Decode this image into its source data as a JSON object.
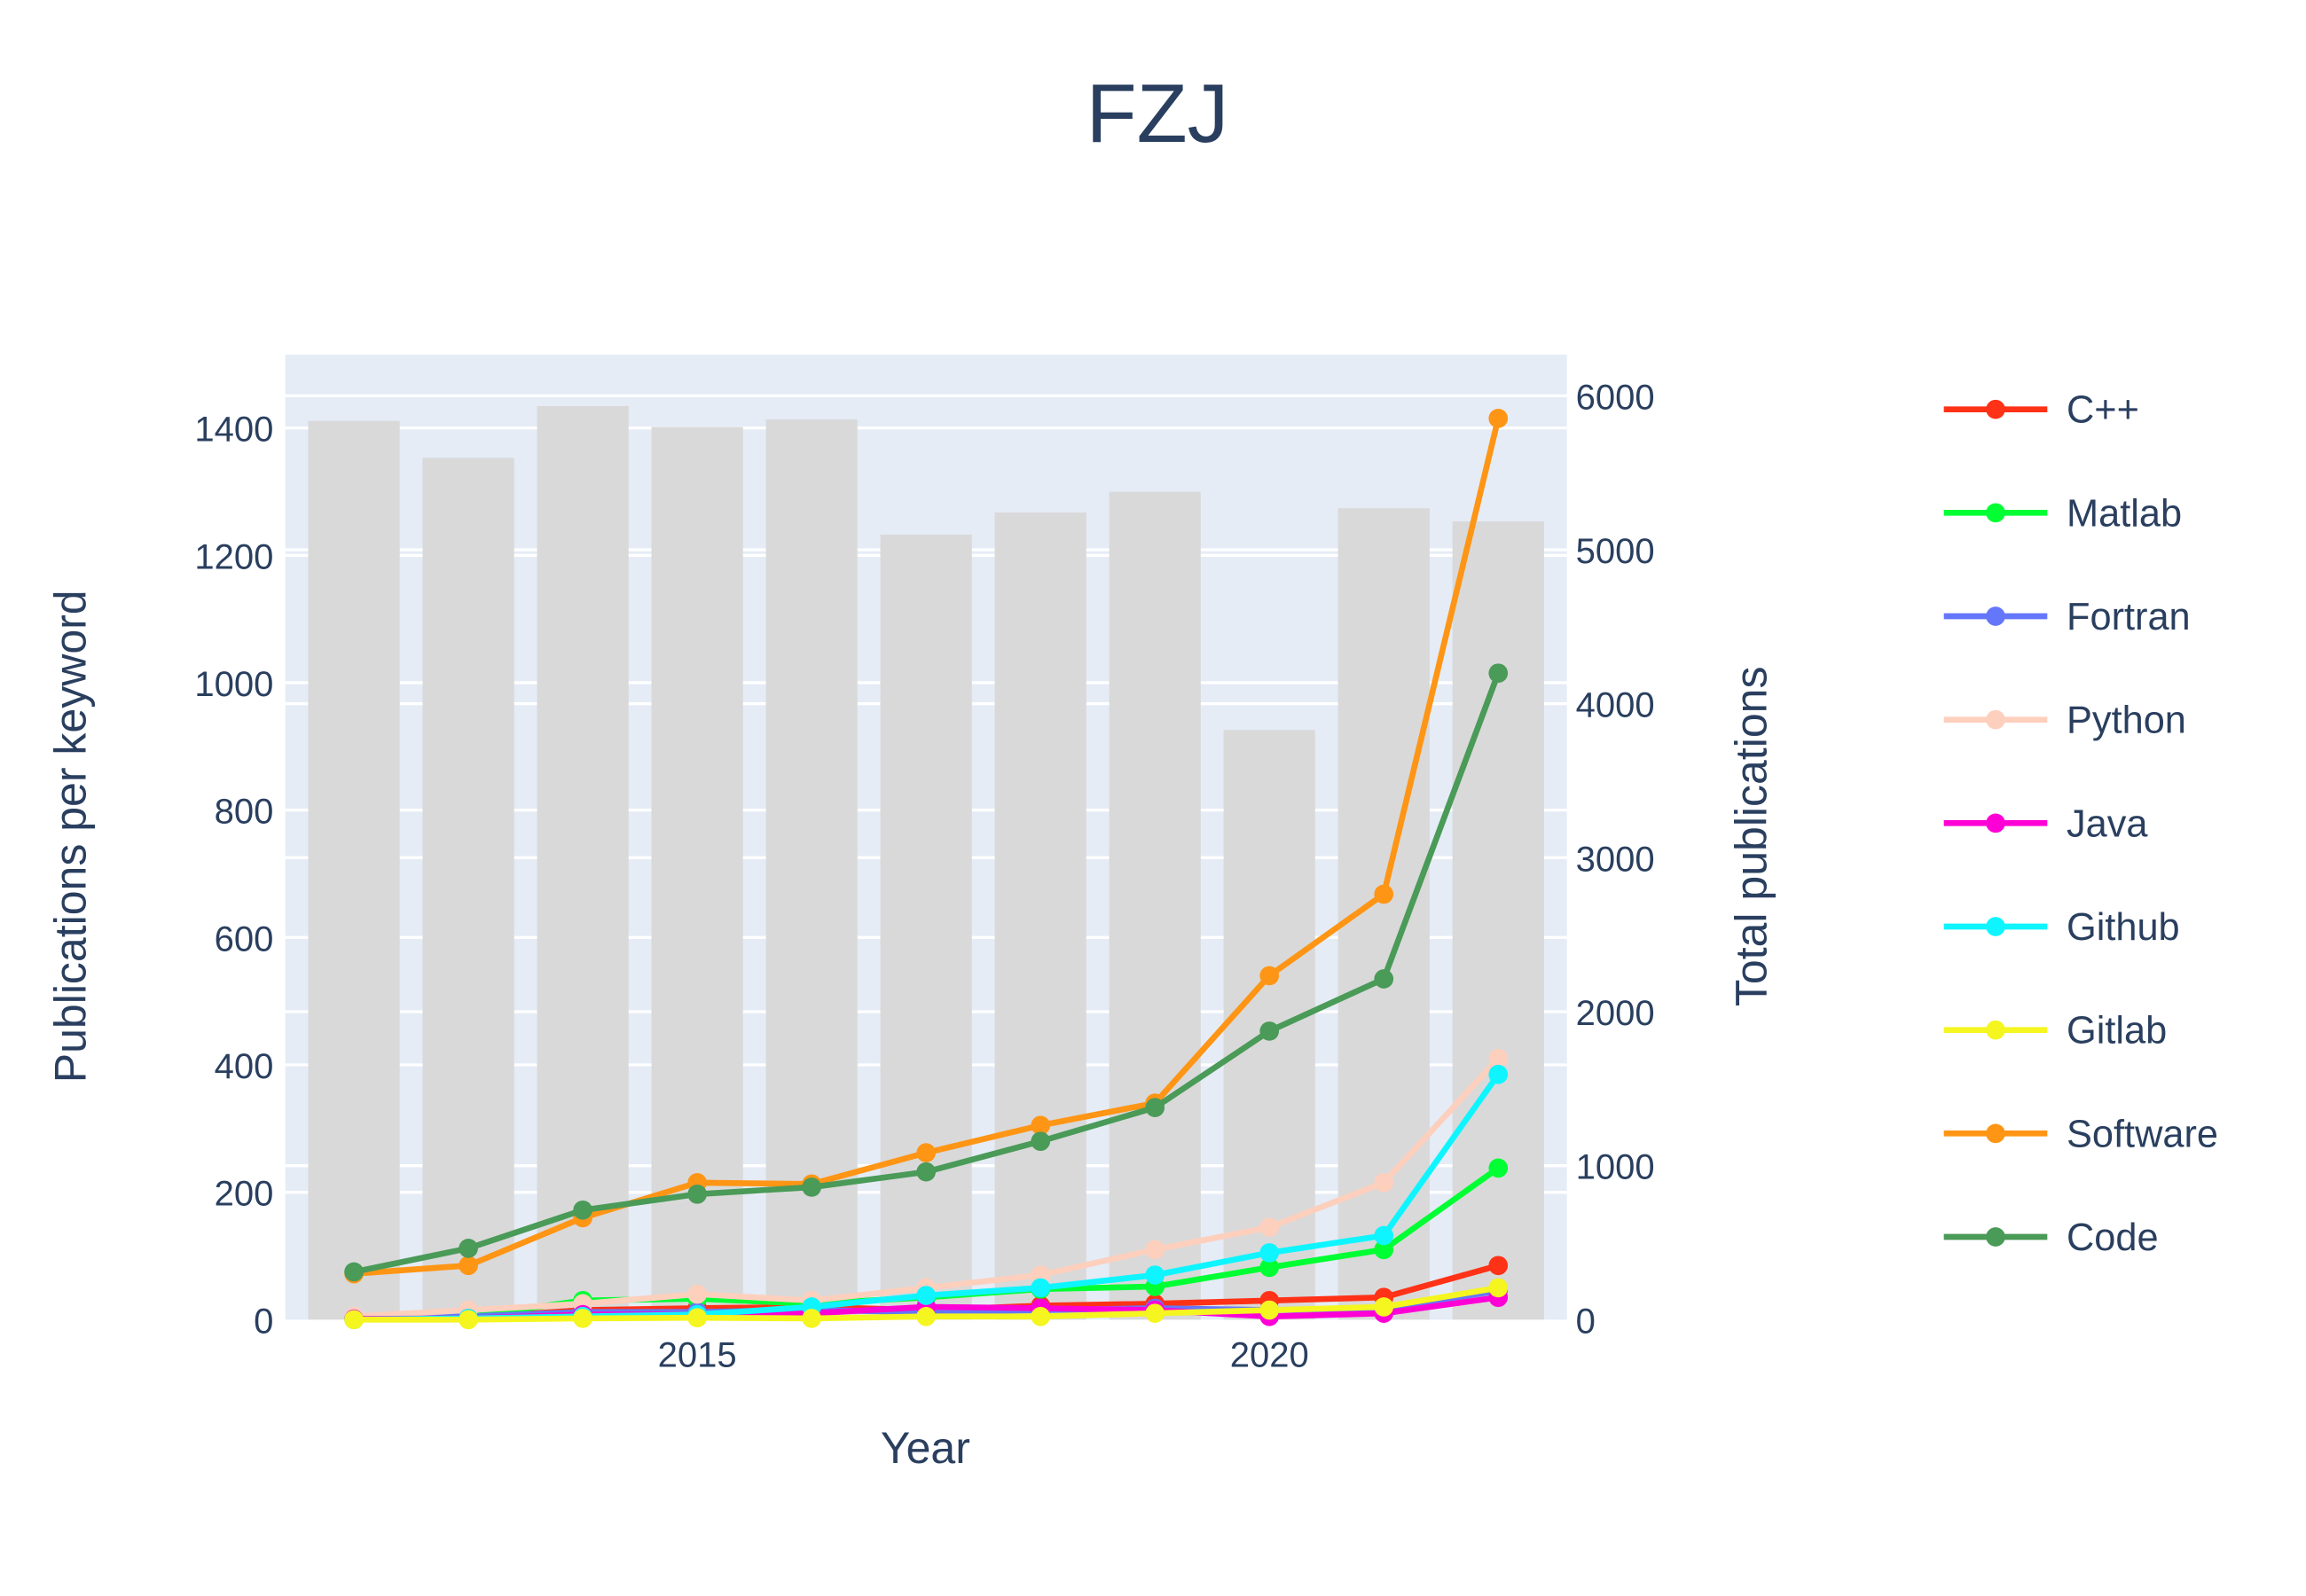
{
  "chart_data": {
    "type": "line",
    "title": "FZJ",
    "xlabel": "Year",
    "ylabel": "Publications per keyword",
    "y2label": "Total publications",
    "x": [
      2012,
      2013,
      2014,
      2015,
      2016,
      2017,
      2018,
      2019,
      2020,
      2021,
      2022
    ],
    "xlim": [
      2011.4,
      2022.6
    ],
    "ylim": [
      0,
      1515
    ],
    "y2lim": [
      0,
      6267
    ],
    "xticks": [
      "2015",
      "2020"
    ],
    "yticks": [
      "0",
      "200",
      "400",
      "600",
      "800",
      "1000",
      "1200",
      "1400"
    ],
    "y2ticks": [
      "0",
      "1000",
      "2000",
      "3000",
      "4000",
      "5000",
      "6000"
    ],
    "grid": true,
    "legend_position": "right",
    "bars": {
      "axis": "right",
      "color": "#d9d9d9",
      "values": [
        5837,
        5597,
        5933,
        5798,
        5846,
        5098,
        5242,
        5376,
        3830,
        5270,
        5184
      ]
    },
    "series": [
      {
        "name": "C++",
        "color": "#ff3217",
        "values": [
          2,
          3,
          15,
          18,
          20,
          15,
          22,
          25,
          30,
          35,
          85
        ]
      },
      {
        "name": "Matlab",
        "color": "#00ff33",
        "values": [
          3,
          5,
          30,
          33,
          25,
          35,
          48,
          52,
          82,
          110,
          238
        ]
      },
      {
        "name": "Fortran",
        "color": "#6476fa",
        "values": [
          2,
          5,
          12,
          12,
          15,
          12,
          15,
          18,
          15,
          18,
          45
        ]
      },
      {
        "name": "Python",
        "color": "#fdcfbd",
        "values": [
          5,
          15,
          25,
          40,
          30,
          50,
          70,
          110,
          145,
          215,
          410
        ]
      },
      {
        "name": "Java",
        "color": "#fe00d6",
        "values": [
          1,
          2,
          8,
          8,
          10,
          20,
          18,
          15,
          5,
          10,
          35
        ]
      },
      {
        "name": "Github",
        "color": "#0ff5ff",
        "values": [
          0,
          2,
          5,
          8,
          20,
          38,
          50,
          70,
          105,
          132,
          385
        ]
      },
      {
        "name": "Gitlab",
        "color": "#f5f520",
        "values": [
          0,
          0,
          2,
          3,
          2,
          5,
          5,
          10,
          15,
          20,
          50
        ]
      },
      {
        "name": "Software",
        "color": "#ff9515",
        "values": [
          72,
          85,
          160,
          215,
          213,
          262,
          305,
          340,
          540,
          668,
          1415
        ]
      },
      {
        "name": "Code",
        "color": "#4a9a58",
        "values": [
          75,
          112,
          172,
          197,
          208,
          232,
          280,
          333,
          453,
          535,
          1015
        ]
      }
    ]
  }
}
